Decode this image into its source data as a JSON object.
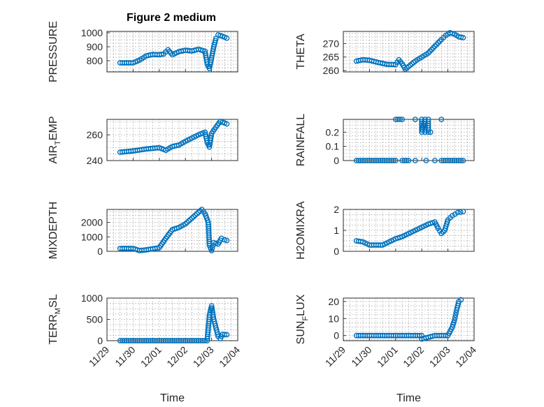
{
  "chart_data": {
    "type": "scatter",
    "title": "Figure 2 medium",
    "marker_color": "#0072BD",
    "marker": "open-circle",
    "grid": "on",
    "xlabel": "Time",
    "x_tick_labels": [
      "11/29",
      "11/30",
      "12/01",
      "12/02",
      "12/03",
      "12/04"
    ],
    "panels": [
      {
        "ylabel": "PRESSURE",
        "ylabel_sub": "",
        "ylim": [
          720,
          1010
        ],
        "yticks": [
          800,
          900,
          1000
        ],
        "ytick_labels": [
          "800",
          "900",
          "1000"
        ],
        "points": [
          [
            "11/29 12:00",
            785
          ],
          [
            "11/30 00:00",
            785
          ],
          [
            "11/30 06:00",
            805
          ],
          [
            "11/30 12:00",
            835
          ],
          [
            "11/30 18:00",
            845
          ],
          [
            "12/01 00:00",
            843
          ],
          [
            "12/01 04:00",
            848
          ],
          [
            "12/01 08:00",
            878
          ],
          [
            "12/01 12:00",
            843
          ],
          [
            "12/01 18:00",
            865
          ],
          [
            "12/02 00:00",
            875
          ],
          [
            "12/02 06:00",
            870
          ],
          [
            "12/02 12:00",
            882
          ],
          [
            "12/02 18:00",
            868
          ],
          [
            "12/02 20:00",
            775
          ],
          [
            "12/02 22:00",
            745
          ],
          [
            "12/03 00:00",
            820
          ],
          [
            "12/03 02:00",
            900
          ],
          [
            "12/03 04:00",
            960
          ],
          [
            "12/03 06:00",
            985
          ],
          [
            "12/03 10:00",
            975
          ],
          [
            "12/03 14:00",
            962
          ]
        ]
      },
      {
        "ylabel": "THETA",
        "ylabel_sub": "",
        "ylim": [
          259.5,
          274.5
        ],
        "yticks": [
          260,
          265,
          270
        ],
        "ytick_labels": [
          "260",
          "265",
          "270"
        ],
        "points": [
          [
            "11/29 12:00",
            263.5
          ],
          [
            "11/29 18:00",
            264
          ],
          [
            "11/30 00:00",
            263.8
          ],
          [
            "11/30 08:00",
            263
          ],
          [
            "11/30 16:00",
            262.3
          ],
          [
            "12/01 00:00",
            262.2
          ],
          [
            "12/01 03:00",
            264
          ],
          [
            "12/01 06:00",
            262.5
          ],
          [
            "12/01 09:00",
            260.5
          ],
          [
            "12/01 12:00",
            261.5
          ],
          [
            "12/01 18:00",
            263.5
          ],
          [
            "12/02 00:00",
            265
          ],
          [
            "12/02 06:00",
            266.5
          ],
          [
            "12/02 12:00",
            269
          ],
          [
            "12/02 18:00",
            271.5
          ],
          [
            "12/02 22:00",
            273
          ],
          [
            "12/03 02:00",
            274
          ],
          [
            "12/03 06:00",
            273.5
          ],
          [
            "12/03 10:00",
            272.5
          ],
          [
            "12/03 14:00",
            272.2
          ]
        ]
      },
      {
        "ylabel": "AIR",
        "ylabel_sub": "T",
        "ylabel_suffix": "EMP",
        "ylim": [
          240,
          272
        ],
        "yticks": [
          240,
          260
        ],
        "ytick_labels": [
          "240",
          "260"
        ],
        "points": [
          [
            "11/29 12:00",
            246.5
          ],
          [
            "11/30 00:00",
            247.5
          ],
          [
            "11/30 12:00",
            249
          ],
          [
            "12/01 00:00",
            250
          ],
          [
            "12/01 06:00",
            248
          ],
          [
            "12/01 12:00",
            251
          ],
          [
            "12/01 18:00",
            252
          ],
          [
            "12/02 00:00",
            255
          ],
          [
            "12/02 12:00",
            260
          ],
          [
            "12/02 18:00",
            262
          ],
          [
            "12/02 20:00",
            254
          ],
          [
            "12/02 22:00",
            250.5
          ],
          [
            "12/03 00:00",
            261
          ],
          [
            "12/03 04:00",
            266
          ],
          [
            "12/03 08:00",
            270.5
          ],
          [
            "12/03 14:00",
            268.5
          ]
        ]
      },
      {
        "ylabel": "RAINFALL",
        "ylabel_sub": "",
        "ylim": [
          0,
          0.29
        ],
        "yticks": [
          0,
          0.1,
          0.2
        ],
        "ytick_labels": [
          "0",
          "0.1",
          "0.2"
        ],
        "points": [
          [
            "11/29 12:00",
            0
          ],
          [
            "11/30 00:00",
            0
          ],
          [
            "11/30 12:00",
            0
          ],
          [
            "12/01 00:00",
            0
          ],
          [
            "12/01 00:00",
            0.29
          ],
          [
            "12/01 06:00",
            0.29
          ],
          [
            "12/01 06:00",
            0
          ],
          [
            "12/01 12:00",
            0
          ],
          [
            "12/01 18:00",
            0.29
          ],
          [
            "12/01 18:00",
            0
          ],
          [
            "12/02 00:00",
            0.29
          ],
          [
            "12/02 00:00",
            0.2
          ],
          [
            "12/02 03:00",
            0.29
          ],
          [
            "12/02 03:00",
            0.2
          ],
          [
            "12/02 04:00",
            0
          ],
          [
            "12/02 06:00",
            0.29
          ],
          [
            "12/02 06:00",
            0.2
          ],
          [
            "12/02 08:00",
            0.2
          ],
          [
            "12/02 12:00",
            0
          ],
          [
            "12/02 18:00",
            0.29
          ],
          [
            "12/02 18:00",
            0
          ],
          [
            "12/03 00:00",
            0
          ],
          [
            "12/03 12:00",
            0
          ],
          [
            "12/03 14:00",
            0
          ]
        ]
      },
      {
        "ylabel": "MIXDEPTH",
        "ylabel_sub": "",
        "ylim": [
          0,
          2900
        ],
        "yticks": [
          0,
          1000,
          2000
        ],
        "ytick_labels": [
          "0",
          "1000",
          "2000"
        ],
        "points": [
          [
            "11/29 12:00",
            200
          ],
          [
            "11/30 00:00",
            200
          ],
          [
            "11/30 06:00",
            50
          ],
          [
            "11/30 12:00",
            100
          ],
          [
            "12/01 00:00",
            250
          ],
          [
            "12/01 06:00",
            900
          ],
          [
            "12/01 12:00",
            1500
          ],
          [
            "12/01 18:00",
            1650
          ],
          [
            "12/02 00:00",
            1900
          ],
          [
            "12/02 06:00",
            2300
          ],
          [
            "12/02 12:00",
            2700
          ],
          [
            "12/02 15:00",
            2900
          ],
          [
            "12/02 18:00",
            2600
          ],
          [
            "12/02 21:00",
            2000
          ],
          [
            "12/02 22:00",
            400
          ],
          [
            "12/03 00:00",
            50
          ],
          [
            "12/03 02:00",
            600
          ],
          [
            "12/03 06:00",
            500
          ],
          [
            "12/03 09:00",
            900
          ],
          [
            "12/03 12:00",
            800
          ],
          [
            "12/03 14:00",
            750
          ]
        ]
      },
      {
        "ylabel": "H2OMIXRA",
        "ylabel_sub": "",
        "ylim": [
          0,
          2
        ],
        "yticks": [
          0,
          1,
          2
        ],
        "ytick_labels": [
          "0",
          "1",
          "2"
        ],
        "points": [
          [
            "11/29 12:00",
            0.5
          ],
          [
            "11/29 18:00",
            0.45
          ],
          [
            "11/30 00:00",
            0.3
          ],
          [
            "11/30 12:00",
            0.3
          ],
          [
            "12/01 00:00",
            0.6
          ],
          [
            "12/01 06:00",
            0.7
          ],
          [
            "12/01 12:00",
            0.85
          ],
          [
            "12/01 18:00",
            1.0
          ],
          [
            "12/02 00:00",
            1.15
          ],
          [
            "12/02 06:00",
            1.3
          ],
          [
            "12/02 12:00",
            1.4
          ],
          [
            "12/02 15:00",
            1.1
          ],
          [
            "12/02 18:00",
            0.85
          ],
          [
            "12/02 21:00",
            1.0
          ],
          [
            "12/03 00:00",
            1.5
          ],
          [
            "12/03 04:00",
            1.7
          ],
          [
            "12/03 09:00",
            1.85
          ],
          [
            "12/03 14:00",
            1.9
          ]
        ]
      },
      {
        "ylabel": "TERR",
        "ylabel_sub": "M",
        "ylabel_suffix": "SL",
        "ylim": [
          0,
          1000
        ],
        "yticks": [
          0,
          500,
          1000
        ],
        "ytick_labels": [
          "0",
          "500",
          "1000"
        ],
        "points": [
          [
            "11/29 12:00",
            0
          ],
          [
            "11/30 00:00",
            0
          ],
          [
            "11/30 12:00",
            0
          ],
          [
            "12/01 00:00",
            0
          ],
          [
            "12/01 12:00",
            0
          ],
          [
            "12/02 00:00",
            0
          ],
          [
            "12/02 12:00",
            0
          ],
          [
            "12/02 20:00",
            0
          ],
          [
            "12/02 22:00",
            600
          ],
          [
            "12/03 00:00",
            820
          ],
          [
            "12/03 02:00",
            500
          ],
          [
            "12/03 04:00",
            300
          ],
          [
            "12/03 06:00",
            100
          ],
          [
            "12/03 08:00",
            50
          ],
          [
            "12/03 10:00",
            150
          ],
          [
            "12/03 14:00",
            140
          ]
        ]
      },
      {
        "ylabel": "SUN",
        "ylabel_sub": "F",
        "ylabel_suffix": "LUX",
        "ylim": [
          -3,
          22
        ],
        "yticks": [
          0,
          10,
          20
        ],
        "ytick_labels": [
          "0",
          "10",
          "20"
        ],
        "points": [
          [
            "11/29 12:00",
            0
          ],
          [
            "11/30 00:00",
            0
          ],
          [
            "11/30 12:00",
            0
          ],
          [
            "12/01 00:00",
            0
          ],
          [
            "12/01 12:00",
            0
          ],
          [
            "12/02 00:00",
            0
          ],
          [
            "12/02 00:00",
            -2
          ],
          [
            "12/02 12:00",
            0
          ],
          [
            "12/03 00:00",
            0
          ],
          [
            "12/03 04:00",
            5
          ],
          [
            "12/03 06:00",
            9
          ],
          [
            "12/03 08:00",
            15
          ],
          [
            "12/03 10:00",
            20
          ],
          [
            "12/03 12:00",
            21
          ]
        ]
      }
    ]
  }
}
